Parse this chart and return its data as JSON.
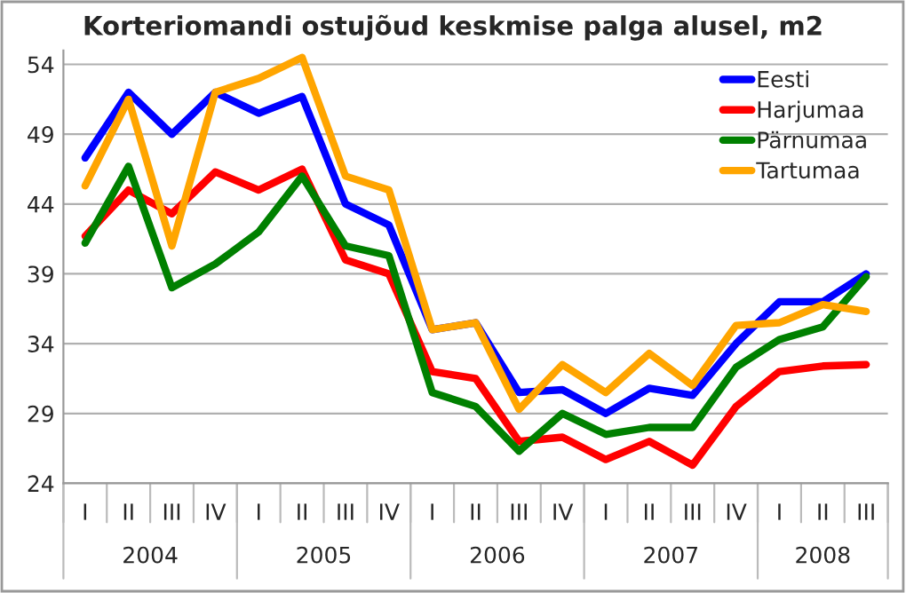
{
  "chart_data": {
    "type": "line",
    "title": "Korteriomandi ostujõud keskmise palga alusel, m2",
    "categories": [
      "I",
      "II",
      "III",
      "IV",
      "I",
      "II",
      "III",
      "IV",
      "I",
      "II",
      "III",
      "IV",
      "I",
      "II",
      "III",
      "IV",
      "I",
      "II",
      "III"
    ],
    "annotations": [
      "2004",
      "2005",
      "2006",
      "2007",
      "2008"
    ],
    "series": [
      {
        "name": "Eesti",
        "color": "#0000ff",
        "values": [
          47.3,
          52,
          49,
          52,
          50.5,
          51.7,
          44,
          42.5,
          35,
          35.5,
          30.5,
          30.7,
          29,
          30.8,
          30.3,
          34,
          37,
          37,
          39
        ]
      },
      {
        "name": "Harjumaa",
        "color": "#ff0000",
        "values": [
          41.7,
          45,
          43.3,
          46.3,
          45,
          46.5,
          40,
          39,
          32,
          31.5,
          27,
          27.3,
          25.7,
          27,
          25.3,
          29.5,
          32,
          32.4,
          32.5
        ]
      },
      {
        "name": "Pärnumaa",
        "color": "#008000",
        "values": [
          41.2,
          46.7,
          38,
          39.7,
          42,
          46,
          41,
          40.3,
          30.5,
          29.5,
          26.3,
          29,
          27.5,
          28,
          28,
          32.3,
          34.3,
          35.2,
          38.8
        ]
      },
      {
        "name": "Tartumaa",
        "color": "#ffa500",
        "values": [
          45.3,
          51.5,
          41,
          52,
          53,
          54.5,
          46,
          45,
          35,
          35.5,
          29.3,
          32.5,
          30.5,
          33.3,
          31,
          35.3,
          35.5,
          36.8,
          36.3
        ]
      }
    ],
    "ylim": [
      24,
      55
    ],
    "yticks": [
      24,
      29,
      34,
      39,
      44,
      49,
      54
    ],
    "grid": "y",
    "legend": "top right",
    "marker": "none",
    "line_style": "solid"
  }
}
